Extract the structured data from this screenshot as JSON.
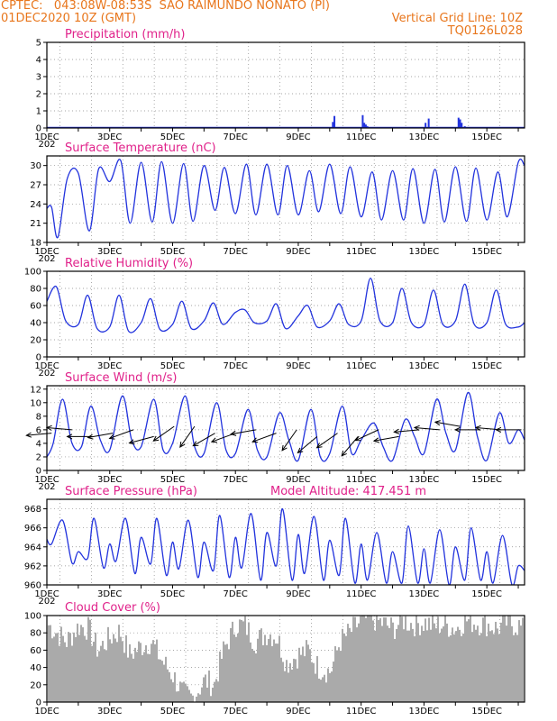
{
  "header": {
    "line1_left": "CPTEC:   043:08W-08:53S  SAO RAIMUNDO NONATO (PI)",
    "line2_left": "01DEC2020 10Z (GMT)",
    "line2_right": "Vertical Grid Line: 10Z",
    "line3_right": "TQ0126L028"
  },
  "colors": {
    "header": "#e8761c",
    "title": "#e0218a",
    "line": "#2233dd",
    "cloud": "#aaaaaa",
    "arrow": "#000000"
  },
  "x_axis": {
    "labels": [
      "1DEC",
      "3DEC",
      "5DEC",
      "7DEC",
      "9DEC",
      "11DEC",
      "13DEC",
      "15DEC"
    ],
    "label_days": [
      1,
      3,
      5,
      7,
      9,
      11,
      13,
      15
    ],
    "year_fragment": "202",
    "range_days": [
      1,
      16.2
    ]
  },
  "chart_data": [
    {
      "type": "bar",
      "title": "Precipitation (mm/h)",
      "ylim": [
        0,
        5
      ],
      "yticks": [
        0,
        1,
        2,
        3,
        4,
        5
      ],
      "x": [
        10.1,
        10.15,
        11.05,
        11.1,
        11.15,
        11.2,
        13.05,
        13.15,
        14.1,
        14.15,
        14.2,
        14.3
      ],
      "values": [
        0.35,
        0.7,
        0.75,
        0.3,
        0.2,
        0.1,
        0.3,
        0.55,
        0.6,
        0.5,
        0.3,
        0.1
      ]
    },
    {
      "type": "line",
      "title": "Surface Temperature (nC)",
      "ylim": [
        18,
        31.5
      ],
      "yticks": [
        18,
        21,
        24,
        27,
        30
      ],
      "x": [
        1.0,
        1.15,
        1.35,
        1.65,
        2.0,
        2.35,
        2.65,
        3.0,
        3.35,
        3.65,
        4.0,
        4.35,
        4.65,
        5.0,
        5.35,
        5.65,
        6.0,
        6.35,
        6.65,
        7.0,
        7.35,
        7.65,
        8.0,
        8.35,
        8.65,
        9.0,
        9.35,
        9.65,
        10.0,
        10.35,
        10.65,
        11.0,
        11.35,
        11.65,
        12.0,
        12.35,
        12.65,
        13.0,
        13.35,
        13.65,
        14.0,
        14.35,
        14.65,
        15.0,
        15.35,
        15.65,
        16.0,
        16.2
      ],
      "values": [
        23.3,
        23.5,
        18.8,
        28.0,
        28.8,
        19.8,
        29.5,
        27.5,
        30.8,
        21.0,
        30.5,
        21.2,
        30.6,
        21.0,
        30.3,
        21.3,
        30.0,
        23.0,
        29.7,
        22.5,
        30.2,
        22.3,
        30.2,
        22.3,
        30.0,
        22.3,
        29.2,
        22.8,
        30.2,
        22.5,
        29.8,
        22.0,
        29.0,
        21.5,
        29.2,
        21.5,
        29.5,
        21.0,
        29.4,
        21.2,
        29.8,
        21.3,
        29.6,
        21.5,
        29.0,
        22.0,
        30.5,
        30.0
      ]
    },
    {
      "type": "line",
      "title": "Relative Humidity (%)",
      "ylim": [
        0,
        100
      ],
      "yticks": [
        0,
        20,
        40,
        60,
        80,
        100
      ],
      "x": [
        1.0,
        1.3,
        1.6,
        2.0,
        2.3,
        2.6,
        3.0,
        3.3,
        3.6,
        4.0,
        4.3,
        4.6,
        5.0,
        5.3,
        5.6,
        6.0,
        6.3,
        6.6,
        7.0,
        7.3,
        7.6,
        8.0,
        8.3,
        8.6,
        9.0,
        9.3,
        9.6,
        10.0,
        10.3,
        10.6,
        11.0,
        11.3,
        11.6,
        12.0,
        12.3,
        12.6,
        13.0,
        13.3,
        13.6,
        14.0,
        14.3,
        14.6,
        15.0,
        15.3,
        15.6,
        16.0,
        16.2
      ],
      "values": [
        65,
        82,
        42,
        38,
        72,
        33,
        35,
        72,
        30,
        40,
        68,
        32,
        38,
        65,
        33,
        42,
        63,
        38,
        52,
        55,
        40,
        42,
        62,
        33,
        48,
        60,
        35,
        42,
        62,
        38,
        42,
        92,
        42,
        40,
        80,
        40,
        38,
        78,
        38,
        42,
        85,
        38,
        40,
        78,
        38,
        35,
        40
      ]
    },
    {
      "type": "line",
      "title": "Surface Wind (m/s)",
      "ylim": [
        0,
        12.5
      ],
      "yticks": [
        0,
        2,
        4,
        6,
        8,
        10,
        12
      ],
      "x": [
        1.0,
        1.2,
        1.5,
        1.8,
        2.1,
        2.4,
        2.7,
        3.0,
        3.4,
        3.7,
        4.0,
        4.4,
        4.7,
        5.0,
        5.4,
        5.7,
        6.0,
        6.4,
        6.7,
        7.0,
        7.4,
        7.7,
        8.0,
        8.4,
        8.7,
        9.0,
        9.4,
        9.7,
        10.0,
        10.4,
        10.7,
        11.0,
        11.4,
        11.7,
        12.0,
        12.4,
        12.7,
        13.0,
        13.4,
        13.7,
        14.0,
        14.4,
        14.7,
        15.0,
        15.4,
        15.7,
        16.0,
        16.2
      ],
      "values": [
        2.0,
        4.0,
        10.5,
        4.0,
        3.5,
        9.5,
        4.5,
        3.0,
        11.0,
        4.5,
        3.5,
        10.5,
        3.0,
        4.0,
        11.0,
        3.5,
        2.5,
        10.0,
        3.0,
        2.5,
        9.0,
        3.0,
        2.0,
        8.5,
        4.5,
        1.5,
        9.0,
        2.0,
        2.5,
        9.5,
        2.5,
        4.5,
        7.0,
        3.5,
        1.5,
        7.5,
        5.0,
        2.5,
        10.5,
        5.5,
        3.0,
        11.5,
        5.0,
        1.5,
        8.5,
        4.0,
        6.0,
        4.5
      ],
      "arrows": {
        "x": [
          1.15,
          1.8,
          2.45,
          3.1,
          3.75,
          4.4,
          5.05,
          5.7,
          6.35,
          7.0,
          7.65,
          8.3,
          8.95,
          9.6,
          10.25,
          10.9,
          11.55,
          12.2,
          12.85,
          13.5,
          14.15,
          14.8,
          15.45,
          16.1
        ],
        "dir_deg": [
          185,
          175,
          180,
          190,
          200,
          195,
          215,
          235,
          210,
          200,
          190,
          200,
          235,
          220,
          215,
          230,
          205,
          190,
          185,
          175,
          170,
          180,
          175,
          180
        ],
        "speed": [
          5.5,
          6.0,
          5.0,
          5.5,
          6.0,
          5.0,
          6.5,
          6.5,
          5.5,
          5.5,
          6.0,
          5.5,
          6.0,
          5.0,
          5.5,
          5.0,
          6.0,
          5.0,
          6.0,
          6.0,
          6.5,
          6.0,
          6.0,
          6.0
        ]
      }
    },
    {
      "type": "line",
      "title": "Surface Pressure (hPa)",
      "annotation": "Model Altitude: 417.451 m",
      "ylim": [
        960,
        969
      ],
      "yticks": [
        960,
        962,
        964,
        966,
        968
      ],
      "x": [
        1.0,
        1.15,
        1.5,
        1.8,
        2.0,
        2.3,
        2.5,
        2.8,
        3.0,
        3.2,
        3.5,
        3.8,
        4.0,
        4.3,
        4.5,
        4.8,
        5.0,
        5.2,
        5.5,
        5.8,
        6.0,
        6.3,
        6.5,
        6.8,
        7.0,
        7.2,
        7.5,
        7.8,
        8.0,
        8.3,
        8.5,
        8.8,
        9.0,
        9.2,
        9.5,
        9.8,
        10.0,
        10.3,
        10.5,
        10.8,
        11.0,
        11.2,
        11.5,
        11.8,
        12.0,
        12.3,
        12.5,
        12.8,
        13.0,
        13.2,
        13.5,
        13.8,
        14.0,
        14.3,
        14.5,
        14.8,
        15.0,
        15.2,
        15.5,
        15.8,
        16.0,
        16.2
      ],
      "values": [
        964.8,
        964.3,
        966.8,
        962.3,
        963.5,
        962.8,
        967.0,
        961.8,
        964.3,
        962.5,
        967.0,
        961.2,
        965.0,
        962.2,
        967.0,
        961.0,
        964.5,
        961.7,
        966.8,
        960.8,
        964.5,
        961.5,
        967.3,
        960.8,
        965.0,
        961.8,
        967.5,
        960.5,
        965.5,
        962.0,
        968.0,
        960.5,
        965.3,
        961.2,
        967.2,
        960.5,
        964.7,
        961.0,
        967.0,
        960.2,
        964.3,
        960.5,
        965.5,
        960.2,
        963.5,
        960.2,
        966.2,
        960.2,
        963.8,
        960.2,
        965.8,
        960.0,
        964.0,
        960.5,
        966.0,
        960.5,
        963.5,
        960.2,
        965.2,
        960.0,
        962.0,
        961.5
      ]
    },
    {
      "type": "area",
      "title": "Cloud Cover (%)",
      "ylim": [
        0,
        100
      ],
      "yticks": [
        0,
        20,
        40,
        60,
        80,
        100
      ],
      "x": [
        1.0,
        1.3,
        1.6,
        2.0,
        2.3,
        2.6,
        3.0,
        3.3,
        3.6,
        4.0,
        4.3,
        4.6,
        5.0,
        5.3,
        5.6,
        6.0,
        6.3,
        6.6,
        7.0,
        7.3,
        7.6,
        8.0,
        8.3,
        8.6,
        9.0,
        9.3,
        9.6,
        10.0,
        10.3,
        10.6,
        11.0,
        11.3,
        11.6,
        12.0,
        12.3,
        12.6,
        13.0,
        13.3,
        13.6,
        14.0,
        14.3,
        14.6,
        15.0,
        15.3,
        15.6,
        16.0,
        16.2
      ],
      "values": [
        90,
        80,
        70,
        88,
        85,
        60,
        75,
        82,
        55,
        65,
        70,
        50,
        30,
        10,
        5,
        25,
        20,
        60,
        90,
        88,
        70,
        80,
        75,
        45,
        55,
        60,
        40,
        35,
        70,
        80,
        95,
        97,
        92,
        85,
        95,
        90,
        92,
        88,
        90,
        85,
        95,
        92,
        90,
        85,
        92,
        88,
        80
      ]
    }
  ]
}
